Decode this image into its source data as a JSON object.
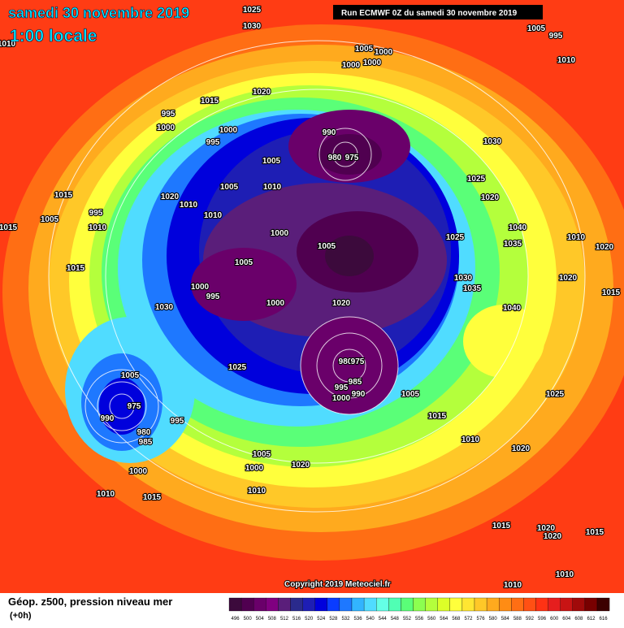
{
  "header": {
    "date": "samedi 30 novembre 2019",
    "time": "1:00 locale",
    "run": "Run ECMWF 0Z du samedi 30 novembre 2019"
  },
  "copyright": "Copyright 2019 Meteociel.fr",
  "footer": {
    "title": "Géop. z500, pression niveau mer",
    "step": "(+0h)"
  },
  "scale": {
    "labels": [
      496,
      500,
      504,
      508,
      512,
      516,
      520,
      524,
      528,
      532,
      536,
      540,
      544,
      548,
      552,
      556,
      560,
      564,
      568,
      572,
      576,
      580,
      584,
      588,
      592,
      596,
      600,
      604,
      608,
      612,
      616
    ],
    "colors": [
      "#3c0a3c",
      "#500050",
      "#6a006a",
      "#800080",
      "#5a1e7a",
      "#2a2a8c",
      "#1e1eb4",
      "#0000dc",
      "#0a3cff",
      "#1e78ff",
      "#32b4ff",
      "#50dcff",
      "#64ffe6",
      "#50ffb4",
      "#5aff78",
      "#8cff50",
      "#b4ff3c",
      "#dcff28",
      "#ffff3c",
      "#ffe632",
      "#ffc828",
      "#ffaa1e",
      "#ff8c14",
      "#ff6e14",
      "#ff5014",
      "#ff3214",
      "#e61e1e",
      "#c81414",
      "#a00a0a",
      "#780000",
      "#3c0000"
    ]
  },
  "isobar_labels": [
    1025,
    1030,
    1010,
    1005,
    995,
    1005,
    1000,
    1000,
    1000,
    1010,
    1015,
    1020,
    995,
    1000,
    1000,
    995,
    990,
    980,
    975,
    1030,
    1025,
    1020,
    1005,
    1010,
    1005,
    1015,
    1020,
    1010,
    1010,
    1005,
    995,
    1015,
    1010,
    1000,
    1005,
    1025,
    1035,
    1040,
    1010,
    1020,
    1015,
    1005,
    1000,
    995,
    1030,
    1035,
    1020,
    1015,
    1030,
    1000,
    1020,
    1040,
    980,
    975,
    985,
    995,
    990,
    1000,
    1025,
    1005,
    1025,
    1005,
    1015,
    975,
    990,
    995,
    980,
    985,
    1010,
    1020,
    1005,
    1000,
    1020,
    1000,
    1010,
    1015,
    1010,
    1020,
    1020,
    1015,
    1015,
    1010,
    1010
  ]
}
